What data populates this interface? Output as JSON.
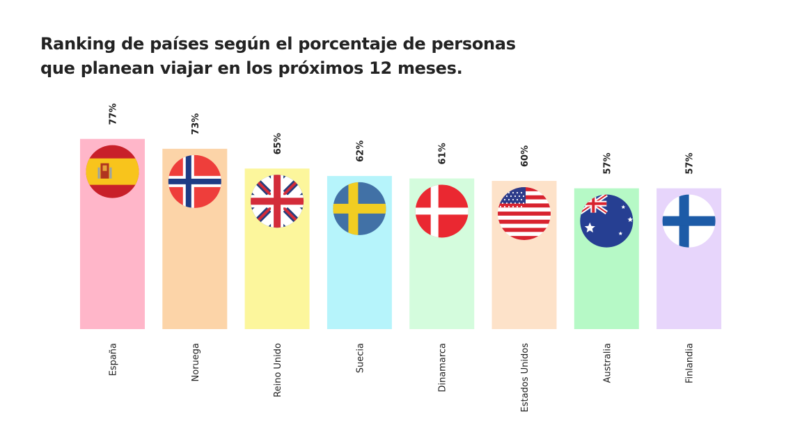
{
  "title_lines": [
    "Ranking de países según el porcentaje de personas",
    "que planean viajar en los próximos 12 meses."
  ],
  "chart_data": {
    "type": "bar",
    "title": "Ranking de países según el porcentaje de personas que planean viajar en los próximos 12 meses.",
    "categories": [
      "España",
      "Noruega",
      "Reino Unido",
      "Suecia",
      "Dinamarca",
      "Estados Unidos",
      "Australia",
      "Finlandia"
    ],
    "values": [
      77,
      73,
      65,
      62,
      61,
      60,
      57,
      57
    ],
    "value_labels": [
      "77%",
      "73%",
      "65%",
      "62%",
      "61%",
      "60%",
      "57%",
      "57%"
    ],
    "bar_colors": [
      "#ffb6c9",
      "#fcd4a8",
      "#fcf69c",
      "#b6f4fb",
      "#d4fcdd",
      "#fde2c9",
      "#b6f9c6",
      "#e7d5fb"
    ],
    "flag_icons": [
      "spain-flag-icon",
      "norway-flag-icon",
      "united-kingdom-flag-icon",
      "sweden-flag-icon",
      "denmark-flag-icon",
      "united-states-flag-icon",
      "australia-flag-icon",
      "finland-flag-icon"
    ],
    "grid": false,
    "legend": "none"
  }
}
